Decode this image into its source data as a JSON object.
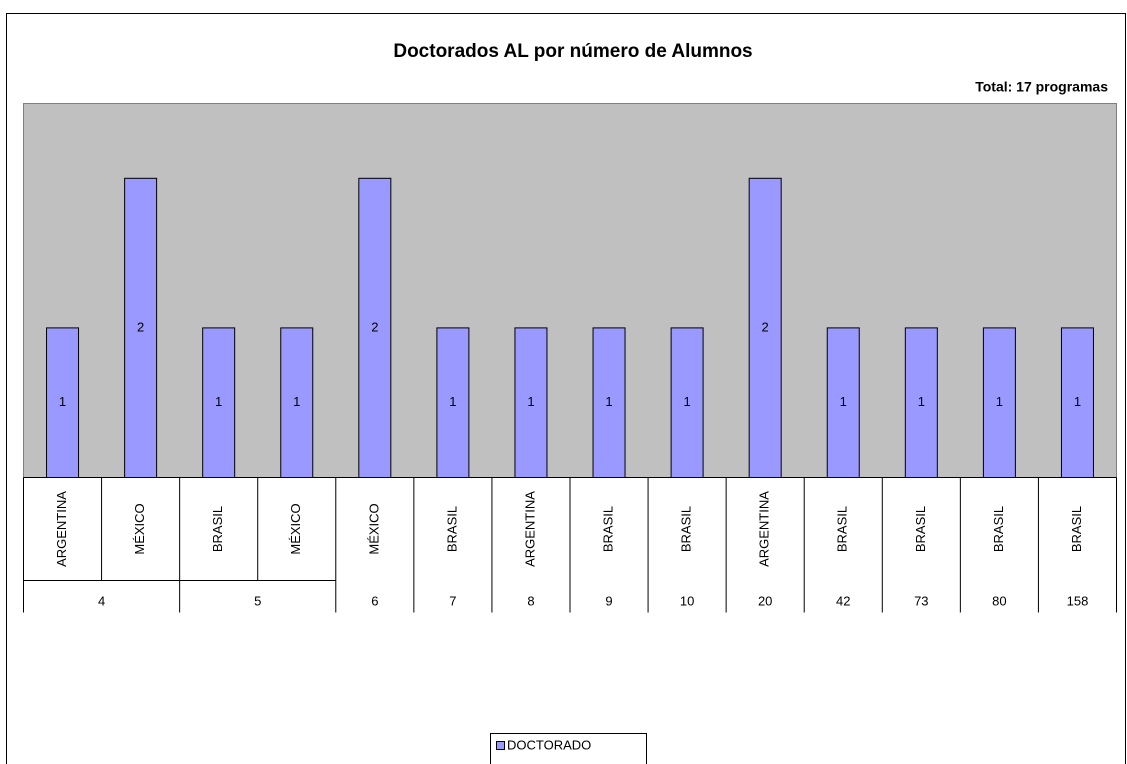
{
  "chart_data": {
    "type": "bar",
    "title": "Doctorados AL por número de Alumnos",
    "subtitle": "Total: 17 programas",
    "groups": [
      {
        "label": "4",
        "categories": [
          "ARGENTINA",
          "MÉXICO"
        ]
      },
      {
        "label": "5",
        "categories": [
          "BRASIL",
          "MÉXICO"
        ]
      },
      {
        "label": "6",
        "categories": [
          "MÉXICO"
        ]
      },
      {
        "label": "7",
        "categories": [
          "BRASIL"
        ]
      },
      {
        "label": "8",
        "categories": [
          "ARGENTINA"
        ]
      },
      {
        "label": "9",
        "categories": [
          "BRASIL"
        ]
      },
      {
        "label": "10",
        "categories": [
          "BRASIL"
        ]
      },
      {
        "label": "20",
        "categories": [
          "ARGENTINA"
        ]
      },
      {
        "label": "42",
        "categories": [
          "BRASIL"
        ]
      },
      {
        "label": "73",
        "categories": [
          "BRASIL"
        ]
      },
      {
        "label": "80",
        "categories": [
          "BRASIL"
        ]
      },
      {
        "label": "158",
        "categories": [
          "BRASIL"
        ]
      }
    ],
    "series": [
      {
        "name": "DOCTORADO",
        "color": "#9999ff",
        "values": [
          1,
          2,
          1,
          1,
          2,
          1,
          1,
          1,
          1,
          2,
          1,
          1,
          1,
          1
        ]
      }
    ],
    "ylim": [
      0,
      2.5
    ],
    "plot_color": "#c0c0c0"
  }
}
